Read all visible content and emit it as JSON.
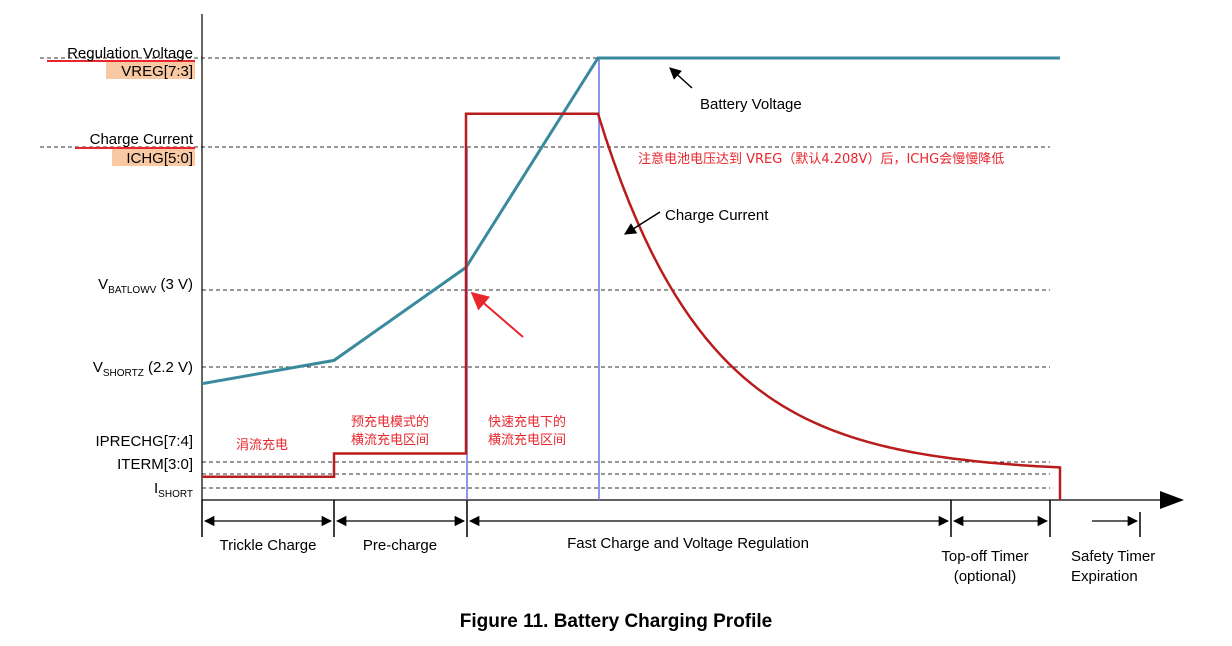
{
  "figure": {
    "caption": "Figure 11.  Battery Charging Profile",
    "annotations": {
      "battery_voltage": "Battery Voltage",
      "charge_current": "Charge Current",
      "note_cn": "注意电池电压达到 VREG（默认4.208V）后，ICHG会慢慢降低",
      "trickle_cn": "涓流充电",
      "precharge_cn_1": "预充电模式的",
      "precharge_cn_2": "横流充电区间",
      "fast_cn_1": "快速充电下的",
      "fast_cn_2": "横流充电区间"
    },
    "phases": {
      "trickle": "Trickle Charge",
      "precharge": "Pre-charge",
      "fast": "Fast Charge and Voltage Regulation",
      "topoff_1": "Top-off Timer",
      "topoff_2": "(optional)",
      "safety_1": "Safety Timer",
      "safety_2": "Expiration"
    },
    "colors": {
      "voltage": "#3a8a9e",
      "current": "#b81c1c",
      "highlight": "#f8c9a3",
      "underline": "#e8262c",
      "marker": "#7777ee",
      "red_arrow": "#e8262c"
    }
  },
  "chart_data": {
    "type": "line",
    "y_labels": {
      "vreg_title": "Regulation Voltage",
      "vreg_reg": "VREG[7:3]",
      "ichg_title": "Charge Current",
      "ichg_reg": "ICHG[5:0]",
      "vbatlowv_main": "V",
      "vbatlowv_sub": "BATLOWV",
      "vbatlowv_value": " (3 V)",
      "vshortz_main": "V",
      "vshortz_sub": "SHORTZ",
      "vshortz_value": " (2.2 V)",
      "iprechg": "IPRECHG[7:4]",
      "iterm": "ITERM[3:0]",
      "ishort_main": "I",
      "ishort_sub": "SHORT"
    },
    "levels": {
      "vreg": 95,
      "ichg": 83,
      "vbatlowv": 50,
      "vshortz": 30,
      "iprechg": 10,
      "iterm": 8,
      "ishort": 3
    },
    "phase_boundaries": [
      0,
      20,
      40,
      60,
      115,
      130,
      148
    ],
    "series": [
      {
        "name": "Battery Voltage",
        "points": [
          [
            0,
            25
          ],
          [
            20,
            30
          ],
          [
            40,
            50
          ],
          [
            60,
            95
          ],
          [
            130,
            95
          ]
        ]
      },
      {
        "name": "Charge Current",
        "points": [
          [
            0,
            5
          ],
          [
            20,
            5
          ],
          [
            20,
            10
          ],
          [
            40,
            10
          ],
          [
            40,
            83
          ],
          [
            60,
            83
          ],
          [
            130,
            7
          ]
        ]
      }
    ]
  }
}
